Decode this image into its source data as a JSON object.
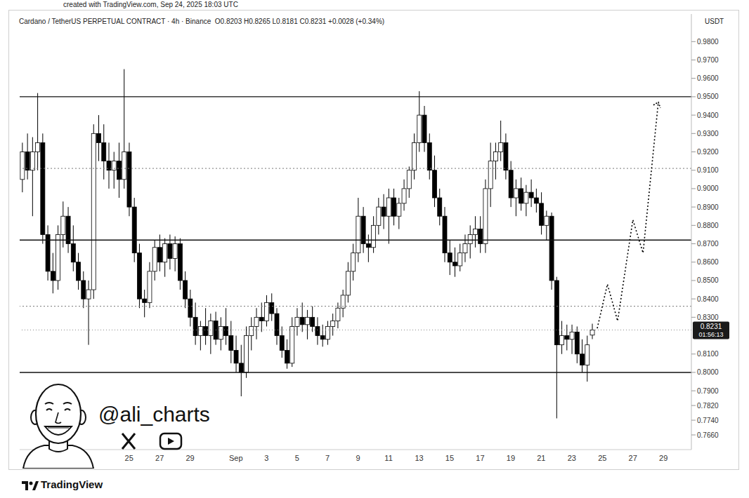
{
  "chart_data": {
    "type": "candlestick",
    "title": "Cardano / TetherUS PERPETUAL CONTRACT · 4h · Binance",
    "subtitle": "O0.8203 H0.8265 L0.8181 C0.8231 +0.0028 (+0.34%)",
    "y_label": "USDT",
    "annotations": [
      "created with TradingView.com, Sep 24, 2025 18:03 UTC",
      "@ali_charts",
      "TradingView"
    ],
    "grid": false,
    "ylim": [
      0.758,
      0.995
    ],
    "yticks": [
      {
        "value": 0.98,
        "label": "0.9800"
      },
      {
        "value": 0.97,
        "label": "0.9700"
      },
      {
        "value": 0.96,
        "label": "0.9600"
      },
      {
        "value": 0.95,
        "label": "0.9500"
      },
      {
        "value": 0.94,
        "label": "0.9400"
      },
      {
        "value": 0.93,
        "label": "0.9300"
      },
      {
        "value": 0.92,
        "label": "0.9200"
      },
      {
        "value": 0.91,
        "label": "0.9100"
      },
      {
        "value": 0.9,
        "label": "0.9000"
      },
      {
        "value": 0.89,
        "label": "0.8900"
      },
      {
        "value": 0.88,
        "label": "0.8800"
      },
      {
        "value": 0.87,
        "label": "0.8700"
      },
      {
        "value": 0.86,
        "label": "0.8600"
      },
      {
        "value": 0.85,
        "label": "0.8500"
      },
      {
        "value": 0.84,
        "label": "0.8400"
      },
      {
        "value": 0.83,
        "label": "0.8300"
      },
      {
        "value": 0.81,
        "label": "0.8100"
      },
      {
        "value": 0.8,
        "label": "0.8000"
      },
      {
        "value": 0.79,
        "label": "0.7900"
      },
      {
        "value": 0.782,
        "label": "0.7820"
      },
      {
        "value": 0.774,
        "label": "0.7740"
      },
      {
        "value": 0.766,
        "label": "0.7660"
      }
    ],
    "levels": [
      {
        "value": 0.95,
        "line_style": "solid"
      },
      {
        "value": 0.911,
        "line_style": "dotted"
      },
      {
        "value": 0.872,
        "line_style": "solid"
      },
      {
        "value": 0.836,
        "line_style": "dotted"
      },
      {
        "value": 0.8,
        "line_style": "solid"
      }
    ],
    "last_price": {
      "value": 0.8231,
      "countdown": "01:56:13"
    },
    "categories": [
      null,
      null,
      null,
      null,
      null,
      null,
      null,
      null,
      null,
      null,
      null,
      null,
      null,
      null,
      null,
      null,
      null,
      null,
      null,
      null,
      null,
      "25",
      null,
      null,
      null,
      null,
      null,
      "27",
      null,
      null,
      null,
      null,
      null,
      "29",
      null,
      null,
      null,
      null,
      null,
      null,
      null,
      null,
      "Sep",
      null,
      null,
      null,
      null,
      null,
      "3",
      null,
      null,
      null,
      null,
      null,
      "5",
      null,
      null,
      null,
      null,
      null,
      "7",
      null,
      null,
      null,
      null,
      null,
      "9",
      null,
      null,
      null,
      null,
      null,
      "11",
      null,
      null,
      null,
      null,
      null,
      "13",
      null,
      null,
      null,
      null,
      null,
      "15",
      null,
      null,
      null,
      null,
      null,
      "17",
      null,
      null,
      null,
      null,
      null,
      "19",
      null,
      null,
      null,
      null,
      null,
      "21",
      null,
      null,
      null,
      null,
      null,
      "23",
      null,
      null,
      null,
      null,
      null,
      "25",
      null,
      null,
      null,
      null,
      null,
      "27",
      null,
      null,
      null,
      null,
      null,
      "29",
      null,
      null,
      null,
      null,
      null
    ],
    "series": [
      {
        "type": "candlestick",
        "color": "#000000",
        "values": [
          [
            0.905,
            0.925,
            0.898,
            0.92
          ],
          [
            0.92,
            0.93,
            0.905,
            0.91
          ],
          [
            0.91,
            0.928,
            0.885,
            0.92
          ],
          [
            0.92,
            0.952,
            0.91,
            0.925
          ],
          [
            0.925,
            0.93,
            0.87,
            0.875
          ],
          [
            0.875,
            0.88,
            0.85,
            0.855
          ],
          [
            0.855,
            0.865,
            0.843,
            0.85
          ],
          [
            0.85,
            0.88,
            0.845,
            0.875
          ],
          [
            0.875,
            0.893,
            0.868,
            0.885
          ],
          [
            0.885,
            0.89,
            0.865,
            0.87
          ],
          [
            0.87,
            0.88,
            0.855,
            0.86
          ],
          [
            0.86,
            0.865,
            0.845,
            0.85
          ],
          [
            0.85,
            0.855,
            0.835,
            0.84
          ],
          [
            0.84,
            0.85,
            0.815,
            0.845
          ],
          [
            0.845,
            0.935,
            0.84,
            0.93
          ],
          [
            0.93,
            0.94,
            0.915,
            0.925
          ],
          [
            0.925,
            0.935,
            0.905,
            0.915
          ],
          [
            0.915,
            0.925,
            0.9,
            0.91
          ],
          [
            0.91,
            0.92,
            0.9,
            0.915
          ],
          [
            0.915,
            0.925,
            0.895,
            0.905
          ],
          [
            0.905,
            0.965,
            0.9,
            0.92
          ],
          [
            0.92,
            0.925,
            0.885,
            0.89
          ],
          [
            0.89,
            0.895,
            0.86,
            0.865
          ],
          [
            0.865,
            0.87,
            0.835,
            0.84
          ],
          [
            0.84,
            0.845,
            0.83,
            0.838
          ],
          [
            0.838,
            0.86,
            0.835,
            0.855
          ],
          [
            0.855,
            0.872,
            0.85,
            0.868
          ],
          [
            0.868,
            0.875,
            0.855,
            0.86
          ],
          [
            0.86,
            0.873,
            0.852,
            0.87
          ],
          [
            0.87,
            0.875,
            0.856,
            0.862
          ],
          [
            0.862,
            0.874,
            0.855,
            0.87
          ],
          [
            0.87,
            0.873,
            0.845,
            0.85
          ],
          [
            0.85,
            0.855,
            0.835,
            0.84
          ],
          [
            0.84,
            0.845,
            0.825,
            0.83
          ],
          [
            0.83,
            0.838,
            0.815,
            0.82
          ],
          [
            0.82,
            0.828,
            0.812,
            0.825
          ],
          [
            0.825,
            0.835,
            0.815,
            0.82
          ],
          [
            0.82,
            0.832,
            0.81,
            0.828
          ],
          [
            0.828,
            0.833,
            0.815,
            0.818
          ],
          [
            0.818,
            0.83,
            0.812,
            0.825
          ],
          [
            0.825,
            0.835,
            0.815,
            0.82
          ],
          [
            0.82,
            0.828,
            0.805,
            0.812
          ],
          [
            0.812,
            0.82,
            0.8,
            0.805
          ],
          [
            0.805,
            0.815,
            0.787,
            0.8
          ],
          [
            0.8,
            0.825,
            0.797,
            0.82
          ],
          [
            0.82,
            0.83,
            0.812,
            0.825
          ],
          [
            0.825,
            0.835,
            0.818,
            0.83
          ],
          [
            0.83,
            0.838,
            0.822,
            0.828
          ],
          [
            0.828,
            0.842,
            0.825,
            0.838
          ],
          [
            0.838,
            0.843,
            0.828,
            0.832
          ],
          [
            0.832,
            0.835,
            0.815,
            0.82
          ],
          [
            0.82,
            0.825,
            0.808,
            0.812
          ],
          [
            0.812,
            0.818,
            0.802,
            0.805
          ],
          [
            0.805,
            0.83,
            0.803,
            0.825
          ],
          [
            0.825,
            0.835,
            0.82,
            0.83
          ],
          [
            0.83,
            0.838,
            0.822,
            0.826
          ],
          [
            0.826,
            0.834,
            0.818,
            0.83
          ],
          [
            0.83,
            0.836,
            0.822,
            0.825
          ],
          [
            0.825,
            0.83,
            0.815,
            0.82
          ],
          [
            0.82,
            0.826,
            0.814,
            0.818
          ],
          [
            0.818,
            0.828,
            0.815,
            0.825
          ],
          [
            0.825,
            0.832,
            0.82,
            0.828
          ],
          [
            0.828,
            0.838,
            0.824,
            0.835
          ],
          [
            0.835,
            0.845,
            0.83,
            0.842
          ],
          [
            0.842,
            0.86,
            0.838,
            0.855
          ],
          [
            0.855,
            0.87,
            0.85,
            0.865
          ],
          [
            0.865,
            0.895,
            0.86,
            0.885
          ],
          [
            0.885,
            0.89,
            0.865,
            0.87
          ],
          [
            0.87,
            0.875,
            0.86,
            0.868
          ],
          [
            0.868,
            0.885,
            0.865,
            0.88
          ],
          [
            0.88,
            0.895,
            0.875,
            0.89
          ],
          [
            0.89,
            0.897,
            0.878,
            0.885
          ],
          [
            0.885,
            0.9,
            0.87,
            0.895
          ],
          [
            0.895,
            0.9,
            0.88,
            0.885
          ],
          [
            0.885,
            0.895,
            0.878,
            0.892
          ],
          [
            0.892,
            0.905,
            0.888,
            0.9
          ],
          [
            0.9,
            0.912,
            0.895,
            0.91
          ],
          [
            0.91,
            0.93,
            0.905,
            0.925
          ],
          [
            0.925,
            0.953,
            0.92,
            0.94
          ],
          [
            0.94,
            0.945,
            0.92,
            0.925
          ],
          [
            0.925,
            0.93,
            0.905,
            0.91
          ],
          [
            0.91,
            0.918,
            0.89,
            0.895
          ],
          [
            0.895,
            0.9,
            0.88,
            0.885
          ],
          [
            0.885,
            0.89,
            0.86,
            0.865
          ],
          [
            0.865,
            0.872,
            0.853,
            0.86
          ],
          [
            0.86,
            0.868,
            0.852,
            0.858
          ],
          [
            0.858,
            0.87,
            0.855,
            0.865
          ],
          [
            0.865,
            0.875,
            0.86,
            0.87
          ],
          [
            0.87,
            0.88,
            0.862,
            0.875
          ],
          [
            0.875,
            0.885,
            0.868,
            0.878
          ],
          [
            0.878,
            0.885,
            0.865,
            0.87
          ],
          [
            0.87,
            0.905,
            0.865,
            0.9
          ],
          [
            0.9,
            0.925,
            0.89,
            0.915
          ],
          [
            0.915,
            0.925,
            0.905,
            0.92
          ],
          [
            0.92,
            0.937,
            0.915,
            0.925
          ],
          [
            0.925,
            0.93,
            0.905,
            0.91
          ],
          [
            0.91,
            0.915,
            0.89,
            0.895
          ],
          [
            0.895,
            0.905,
            0.885,
            0.9
          ],
          [
            0.9,
            0.906,
            0.888,
            0.892
          ],
          [
            0.892,
            0.902,
            0.885,
            0.898
          ],
          [
            0.898,
            0.905,
            0.89,
            0.895
          ],
          [
            0.895,
            0.9,
            0.887,
            0.892
          ],
          [
            0.892,
            0.898,
            0.875,
            0.88
          ],
          [
            0.88,
            0.888,
            0.872,
            0.885
          ],
          [
            0.885,
            0.887,
            0.845,
            0.85
          ],
          [
            0.85,
            0.852,
            0.775,
            0.815
          ],
          [
            0.815,
            0.828,
            0.81,
            0.82
          ],
          [
            0.82,
            0.826,
            0.812,
            0.818
          ],
          [
            0.818,
            0.826,
            0.81,
            0.822
          ],
          [
            0.822,
            0.825,
            0.805,
            0.81
          ],
          [
            0.81,
            0.818,
            0.8,
            0.804
          ],
          [
            0.804,
            0.82,
            0.795,
            0.815
          ],
          [
            0.8203,
            0.8265,
            0.8181,
            0.8231
          ],
          null,
          null,
          null,
          null,
          null,
          null,
          null,
          null,
          null,
          null,
          null,
          null,
          null,
          null,
          null,
          null,
          null,
          null,
          null
        ]
      },
      {
        "type": "line",
        "color": "#000000",
        "line_style": "dotted",
        "marker": "arrow",
        "values": [
          null,
          null,
          null,
          null,
          null,
          null,
          null,
          null,
          null,
          null,
          null,
          null,
          null,
          null,
          null,
          null,
          null,
          null,
          null,
          null,
          null,
          null,
          null,
          null,
          null,
          null,
          null,
          null,
          null,
          null,
          null,
          null,
          null,
          null,
          null,
          null,
          null,
          null,
          null,
          null,
          null,
          null,
          null,
          null,
          null,
          null,
          null,
          null,
          null,
          null,
          null,
          null,
          null,
          null,
          null,
          null,
          null,
          null,
          null,
          null,
          null,
          null,
          null,
          null,
          null,
          null,
          null,
          null,
          null,
          null,
          null,
          null,
          null,
          null,
          null,
          null,
          null,
          null,
          null,
          null,
          null,
          null,
          null,
          null,
          null,
          null,
          null,
          null,
          null,
          null,
          null,
          null,
          null,
          null,
          null,
          null,
          null,
          null,
          null,
          null,
          null,
          null,
          null,
          null,
          null,
          null,
          null,
          null,
          null,
          null,
          null,
          null,
          null,
          0.824,
          null,
          0.848,
          null,
          0.828,
          null,
          null,
          0.883,
          null,
          0.865,
          null,
          null,
          0.947,
          null,
          null,
          null,
          null,
          null,
          null
        ]
      }
    ]
  }
}
